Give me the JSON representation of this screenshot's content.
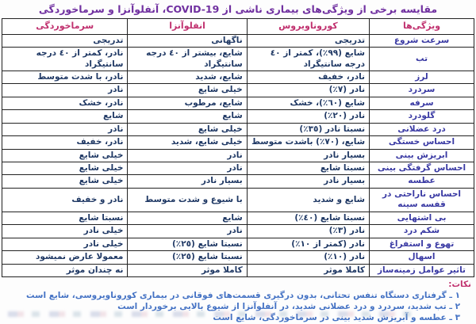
{
  "chart_data": {
    "type": "table",
    "title": "مقایسه برخی از ویژگی‌های بیماری ناشی از COVID-19، آنفلوآنزا و سرماخوردگی",
    "layout": "rtl",
    "columns": [
      "ویژگی‌ها",
      "کوروناویروس",
      "انفلوآنزا",
      "سرماخوردگی"
    ],
    "rows": [
      [
        "سرعت شروع",
        "تدریجی",
        "ناگهانی",
        "تدریجی"
      ],
      [
        "تب",
        "شایع (٩٩٪)، کمتر از ٤٠ درجه سانتیگراد",
        "شایع، بیشتر از ٤٠ درجه سانتیگراد",
        "نادر، کمتر از ٤٠ درجه سانتیگراد"
      ],
      [
        "لرز",
        "نادر، خفیف",
        "شایع، شدید",
        "نادر، با شدت متوسط"
      ],
      [
        "سردرد",
        "نادر (٧٪)",
        "خیلی شایع",
        "نادر"
      ],
      [
        "سرفه",
        "شایع (٦٠٪)، خشک",
        "شایع، مرطوب",
        "نادر، خشک"
      ],
      [
        "گلودرد",
        "نادر (٢٠٪)",
        "شایع",
        "شایع"
      ],
      [
        "درد عضلانی",
        "نسبتا نادر (٣٥٪)",
        "خیلی شایع",
        "نادر"
      ],
      [
        "احساس خستگی",
        "شایع، (٧٠٪) باشدت متوسط",
        "خیلی شایع، شدید",
        "نادر، خفیف"
      ],
      [
        "ابریزش بینی",
        "بسیار نادر",
        "نادر",
        "خیلی شایع"
      ],
      [
        "احساس گرفتگی بینی",
        "نسبتا شایع",
        "نادر",
        "خیلی شایع"
      ],
      [
        "عطسه",
        "بسیار نادر",
        "بسیار نادر",
        "خیلی شایع"
      ],
      [
        "احساس ناراحتی در قفسه سینه",
        "شایع و شدید",
        "با شیوع و شدت متوسط",
        "نادر و خفیف"
      ],
      [
        "بی اشتهایی",
        "نسبتا شایع (٤٠٪)",
        "شایع",
        "نسبتا شایع"
      ],
      [
        "شکم درد",
        "نادر (٣٪)",
        "نادر",
        "خیلی نادر"
      ],
      [
        "تهوع و استفراغ",
        "نادر (کمتر از ١٠٪)",
        "نسبتا شایع (٢٥٪)",
        "خیلی نادر"
      ],
      [
        "اسهال",
        "نادر (١٠٪)",
        "نسبتا شایع (٢٥٪)",
        "معمولا عارض نمیشود"
      ],
      [
        "تاثیر عوامل زمینه‌ساز",
        "کاملا موثر",
        "کاملا موثر",
        "نه چندان موثر"
      ]
    ]
  },
  "notes": {
    "title": "نکات:",
    "items": [
      "١ ـ گرفتاری دستگاه تنفس تحتانی، بدون درگیری قسمت‌های فوقانی در بیماری کوروناویروسی، شایع است",
      "٢ ـ تب شدید، سردرد و درد عضلانی شدید، در آنفلوآنزا از شیوع بالایی برخوردار است",
      "٣ ـ عطسه و آبریزش شدید بینی در سرماخوردگی، شایع است"
    ]
  },
  "colors": {
    "c-title": "#7030a0",
    "c-header": "#c0306e",
    "c-feature": "#3939a3",
    "c-value": "#1f3864",
    "c-note": "#4472c4",
    "c-border": "#222222"
  }
}
